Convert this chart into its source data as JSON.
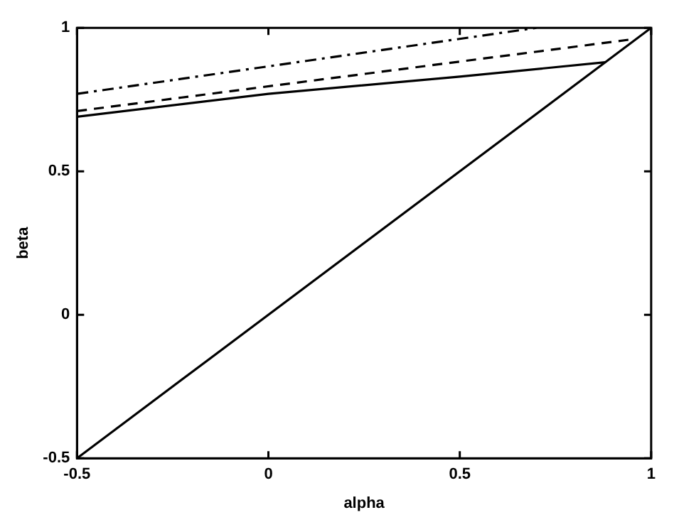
{
  "chart_data": {
    "type": "line",
    "xlabel": "alpha",
    "ylabel": "beta",
    "xlim": [
      -0.5,
      1
    ],
    "ylim": [
      -0.5,
      1
    ],
    "xticks": [
      -0.5,
      0,
      0.5,
      1
    ],
    "yticks": [
      -0.5,
      0,
      0.5,
      1
    ],
    "grid": false,
    "legend": false,
    "marker": "none",
    "series": [
      {
        "color": "#000000",
        "line_style": "solid",
        "x": [
          -0.5,
          1
        ],
        "values": [
          -0.5,
          1
        ]
      },
      {
        "color": "#000000",
        "line_style": "solid",
        "x": [
          -0.5,
          0,
          0.5,
          0.88
        ],
        "values": [
          0.69,
          0.77,
          0.83,
          0.88
        ]
      },
      {
        "color": "#000000",
        "line_style": "dashed",
        "x": [
          -0.5,
          0.95
        ],
        "values": [
          0.71,
          0.96
        ]
      },
      {
        "color": "#000000",
        "line_style": "dashdot",
        "x": [
          -0.5,
          0.7
        ],
        "values": [
          0.77,
          1
        ]
      }
    ]
  }
}
